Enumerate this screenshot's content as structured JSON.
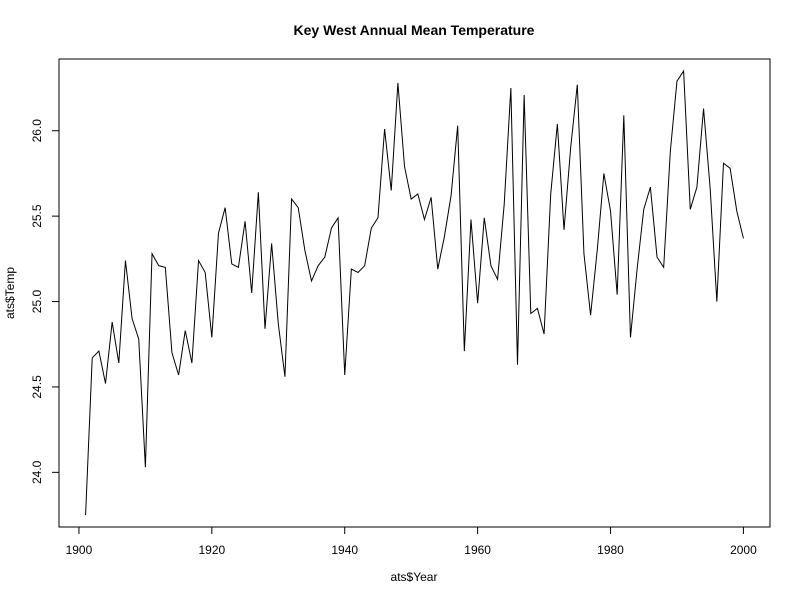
{
  "chart_data": {
    "type": "line",
    "title": "Key West Annual Mean Temperature",
    "xlabel": "ats$Year",
    "ylabel": "ats$Temp",
    "xlim": [
      1897,
      2004
    ],
    "ylim": [
      23.68,
      26.42
    ],
    "x_ticks": [
      1900,
      1920,
      1940,
      1960,
      1980,
      2000
    ],
    "y_ticks": [
      24.0,
      24.5,
      25.0,
      25.5,
      26.0
    ],
    "x_tick_labels": [
      "1900",
      "1920",
      "1940",
      "1960",
      "1980",
      "2000"
    ],
    "y_tick_labels": [
      "24.0",
      "24.5",
      "25.0",
      "25.5",
      "26.0"
    ],
    "grid": false,
    "line_color": "#000000",
    "series": [
      {
        "x": [
          1901,
          1902,
          1903,
          1904,
          1905,
          1906,
          1907,
          1908,
          1909,
          1910,
          1911,
          1912,
          1913,
          1914,
          1915,
          1916,
          1917,
          1918,
          1919,
          1920,
          1921,
          1922,
          1923,
          1924,
          1925,
          1926,
          1927,
          1928,
          1929,
          1930,
          1931,
          1932,
          1933,
          1934,
          1935,
          1936,
          1937,
          1938,
          1939,
          1940,
          1941,
          1942,
          1943,
          1944,
          1945,
          1946,
          1947,
          1948,
          1949,
          1950,
          1951,
          1952,
          1953,
          1954,
          1955,
          1956,
          1957,
          1958,
          1959,
          1960,
          1961,
          1962,
          1963,
          1964,
          1965,
          1966,
          1967,
          1968,
          1969,
          1970,
          1971,
          1972,
          1973,
          1974,
          1975,
          1976,
          1977,
          1978,
          1979,
          1980,
          1981,
          1982,
          1983,
          1984,
          1985,
          1986,
          1987,
          1988,
          1989,
          1990,
          1991,
          1992,
          1993,
          1994,
          1995,
          1996,
          1997,
          1998,
          1999,
          2000
        ],
        "values": [
          23.75,
          24.67,
          24.71,
          24.52,
          24.88,
          24.64,
          25.24,
          24.9,
          24.78,
          24.03,
          25.28,
          25.21,
          25.2,
          24.7,
          24.57,
          24.83,
          24.64,
          25.24,
          25.17,
          24.79,
          25.4,
          25.55,
          25.22,
          25.2,
          25.47,
          25.05,
          25.64,
          24.84,
          25.34,
          24.87,
          24.56,
          25.6,
          25.55,
          25.3,
          25.12,
          25.21,
          25.26,
          25.43,
          25.49,
          24.57,
          25.19,
          25.17,
          25.21,
          25.43,
          25.49,
          26.01,
          25.65,
          26.28,
          25.79,
          25.6,
          25.63,
          25.48,
          25.61,
          25.19,
          25.38,
          25.62,
          26.03,
          24.71,
          25.48,
          24.99,
          25.49,
          25.21,
          25.13,
          25.57,
          26.25,
          24.63,
          26.21,
          24.93,
          24.96,
          24.81,
          25.63,
          26.04,
          25.42,
          25.9,
          26.27,
          25.28,
          24.92,
          25.3,
          25.75,
          25.53,
          25.04,
          26.09,
          24.79,
          25.19,
          25.54,
          25.67,
          25.26,
          25.2,
          25.88,
          26.29,
          26.35,
          25.54,
          25.67,
          26.13,
          25.66,
          25.0,
          25.81,
          25.78,
          25.53,
          25.37
        ]
      }
    ]
  }
}
